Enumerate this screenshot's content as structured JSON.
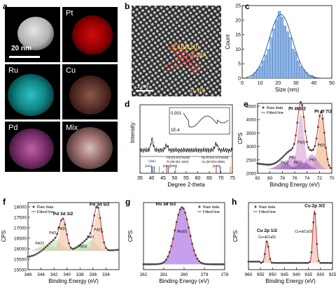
{
  "panels": {
    "a": {
      "label": "a",
      "scale_bar": "20 nm",
      "tiles": [
        "Pt",
        "Ru",
        "Cu",
        "Pd",
        "Mix"
      ]
    },
    "b": {
      "label": "b",
      "plane": "(110)",
      "spacing_1": "2.18Å",
      "spacing_2": "2.18Å",
      "zone_axis": "[1-10]",
      "scale": "1 nm"
    },
    "c": {
      "label": "c"
    },
    "d": {
      "label": "d",
      "inset_ticks": [
        "0.001",
        "1E-4"
      ]
    },
    "e": {
      "label": "e",
      "peak_52": "Pt 4f 5/2",
      "peak_72": "Pt 4f 7/2"
    },
    "f": {
      "label": "f",
      "peak_52": "Pd 3d 3/2",
      "peak_32": "Pd 3d 5/2"
    },
    "g": {
      "label": "g",
      "peak": "Ru 3d 5/2"
    },
    "h": {
      "label": "h",
      "peak_12": "Cu 2p 1/2",
      "peak_32": "Cu 2p 3/2"
    }
  },
  "chart_data": [
    {
      "panel": "c",
      "type": "bar",
      "xlabel": "Size (nm)",
      "ylabel": "Count",
      "xlim": [
        0,
        50
      ],
      "ylim": [
        0,
        25
      ],
      "xticks": [
        0,
        10,
        20,
        30,
        40,
        50
      ],
      "yticks": [
        0,
        5,
        10,
        15,
        20,
        25
      ],
      "bin_width": 1.5,
      "bin_starts": [
        5,
        6.5,
        8,
        9.5,
        11,
        12.5,
        14,
        15.5,
        17,
        18.5,
        20,
        21.5,
        23,
        24.5,
        26,
        27.5,
        29,
        30.5,
        32,
        33.5,
        35,
        36.5,
        38
      ],
      "values": [
        1,
        2,
        3,
        4,
        6,
        8,
        10,
        14,
        17,
        20,
        23,
        21,
        18,
        16,
        14,
        10,
        9,
        6,
        4,
        3,
        2,
        1,
        1
      ],
      "fit": "gaussian"
    },
    {
      "panel": "d",
      "type": "line",
      "xlabel": "Degree 2-theta",
      "ylabel": "Intensity",
      "xlim": [
        35,
        75
      ],
      "xticks": [
        35,
        40,
        45,
        50,
        55,
        60,
        65,
        70,
        75
      ],
      "legend": [
        "Pd (01-072-9129)",
        "Ru-Pt (01-074-6150)",
        "Pt (00-001-1194)",
        "Cu (00-004-0836)"
      ],
      "reflections": [
        "(111)",
        "(111)",
        "(200)",
        "(200)",
        "(220)"
      ]
    },
    {
      "panel": "e",
      "type": "line",
      "xlabel": "Binding Energy (eV)",
      "ylabel": "CPS",
      "xlim": [
        82,
        70
      ],
      "xticks": [
        82,
        80,
        78,
        76,
        74,
        72,
        70
      ],
      "yticks": [
        2000,
        2500,
        3000,
        3500,
        4000,
        4500
      ],
      "ylim": [
        2000,
        4600
      ],
      "legend": [
        "Raw data",
        "Fitted line"
      ],
      "components": [
        "Pt(0)",
        "PtO",
        "PtO2",
        "PtO",
        "Pt(0)",
        "PtO2"
      ]
    },
    {
      "panel": "f",
      "type": "line",
      "xlabel": "Binding Energy (eV)",
      "ylabel": "CPS",
      "xlim": [
        346,
        332
      ],
      "xticks": [
        346,
        344,
        342,
        340,
        338,
        336,
        334
      ],
      "yticks": [
        15000,
        15500,
        16000,
        16500,
        17000,
        17500,
        18000
      ],
      "ylim": [
        15000,
        18200
      ],
      "legend": [
        "Raw data",
        "Fitted line"
      ],
      "components": [
        "PdO2",
        "PdO",
        "Pd(0)",
        "PdO2",
        "PdO",
        "Pd(0)"
      ]
    },
    {
      "panel": "g",
      "type": "line",
      "xlabel": "Binding Energy (eV)",
      "ylabel": "CPS",
      "xlim": [
        282,
        278
      ],
      "xticks": [
        282,
        281,
        280,
        279,
        278
      ],
      "legend": [
        "Raw data",
        "Fitted line"
      ],
      "components": [
        "Ru(0)"
      ]
    },
    {
      "panel": "h",
      "type": "line",
      "xlabel": "Binding Energy (eV)",
      "ylabel": "CPS",
      "xlim": [
        960,
        925
      ],
      "xticks": [
        960,
        955,
        950,
        945,
        940,
        935,
        930,
        925
      ],
      "legend": [
        "Raw data",
        "Fitted line"
      ],
      "components": [
        "Cu+&Cu(0)",
        "Cu+&Cu(0)"
      ]
    }
  ]
}
